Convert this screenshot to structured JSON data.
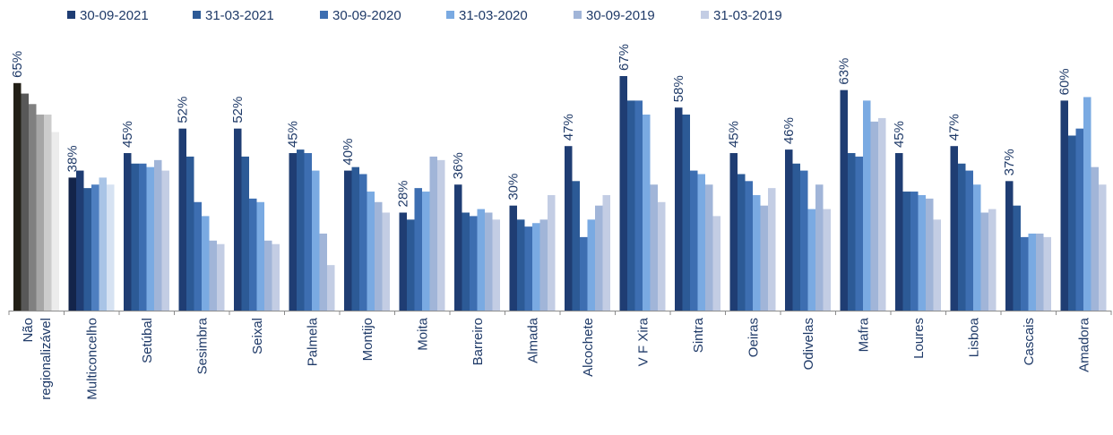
{
  "chart_data": {
    "type": "bar",
    "title": "",
    "xlabel": "",
    "ylabel": "",
    "ylim": [
      0,
      70
    ],
    "grid": false,
    "legend_position": "top",
    "categories": [
      "Não regionalizável",
      "Multiconcelho",
      "Setúbal",
      "Sesimbra",
      "Seixal",
      "Palmela",
      "Montijo",
      "Moita",
      "Barreiro",
      "Almada",
      "Alcochete",
      "V F Xira",
      "Sintra",
      "Oeiras",
      "Odivelas",
      "Mafra",
      "Loures",
      "Lisboa",
      "Cascais",
      "Amadora"
    ],
    "series": [
      {
        "name": "30-09-2021",
        "color": "#1f3d73",
        "values": [
          65,
          38,
          45,
          52,
          52,
          45,
          40,
          28,
          36,
          30,
          47,
          67,
          58,
          45,
          46,
          63,
          45,
          47,
          37,
          60
        ]
      },
      {
        "name": "31-03-2021",
        "color": "#2c5a96",
        "values": [
          62,
          40,
          42,
          44,
          44,
          46,
          41,
          26,
          28,
          26,
          37,
          60,
          56,
          39,
          42,
          45,
          34,
          42,
          30,
          50
        ]
      },
      {
        "name": "30-09-2020",
        "color": "#3d6eb1",
        "values": [
          59,
          35,
          42,
          31,
          32,
          45,
          39,
          35,
          27,
          24,
          21,
          60,
          40,
          37,
          40,
          44,
          34,
          40,
          21,
          52
        ]
      },
      {
        "name": "31-03-2020",
        "color": "#7aaae2",
        "values": [
          56,
          36,
          41,
          27,
          31,
          40,
          34,
          34,
          29,
          25,
          26,
          56,
          39,
          33,
          29,
          60,
          33,
          36,
          22,
          61
        ]
      },
      {
        "name": "30-09-2019",
        "color": "#a1b5d8",
        "values": [
          56,
          38,
          43,
          20,
          20,
          22,
          31,
          44,
          28,
          26,
          30,
          36,
          36,
          30,
          36,
          54,
          32,
          28,
          22,
          41
        ]
      },
      {
        "name": "31-03-2019",
        "color": "#c3cde4",
        "values": [
          51,
          36,
          40,
          19,
          19,
          13,
          28,
          43,
          26,
          33,
          33,
          31,
          27,
          35,
          29,
          55,
          26,
          29,
          21,
          36
        ]
      }
    ],
    "first_group_colors": [
      "#221f16",
      "#585858",
      "#808080",
      "#a6a6a6",
      "#cccccc",
      "#ececec"
    ],
    "second_group_colors": [
      "#13244a",
      "#1f3d73",
      "#2c5a96",
      "#4e7fc0",
      "#a9c4e6",
      "#d6e2f2"
    ],
    "data_labels_series": "30-09-2021",
    "data_label_suffix": "%"
  }
}
